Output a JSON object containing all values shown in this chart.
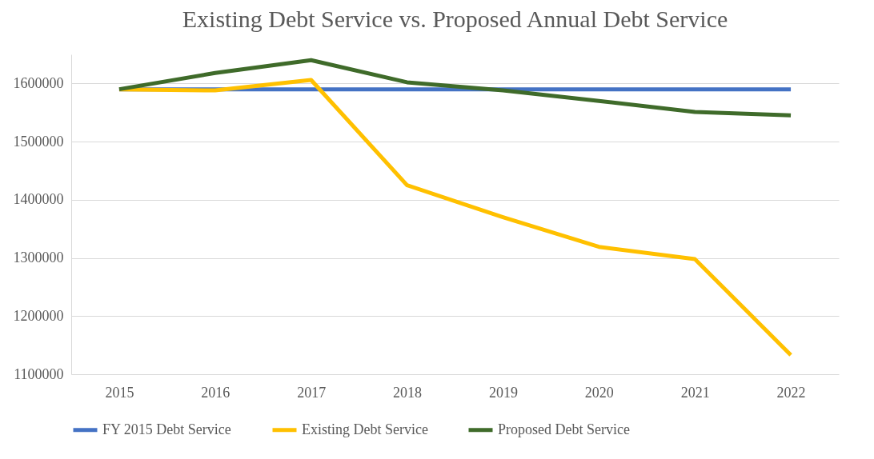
{
  "chart_data": {
    "type": "line",
    "title": "Existing Debt Service vs. Proposed Annual Debt Service",
    "categories": [
      "2015",
      "2016",
      "2017",
      "2018",
      "2019",
      "2020",
      "2021",
      "2022"
    ],
    "series": [
      {
        "name": "FY 2015 Debt Service",
        "color": "#4472c4",
        "values": [
          1590000,
          1590000,
          1590000,
          1590000,
          1590000,
          1590000,
          1590000,
          1590000
        ]
      },
      {
        "name": "Existing Debt Service",
        "color": "#ffc000",
        "values": [
          1590000,
          1588000,
          1606000,
          1425000,
          1370000,
          1319000,
          1298000,
          1133000
        ]
      },
      {
        "name": "Proposed Debt Service",
        "color": "#3f6b2a",
        "values": [
          1590000,
          1618000,
          1640000,
          1602000,
          1588000,
          1570000,
          1551000,
          1545000
        ]
      }
    ],
    "ylim": [
      1100000,
      1650000
    ],
    "yticks": [
      1100000,
      1200000,
      1300000,
      1400000,
      1500000,
      1600000
    ],
    "grid": "y",
    "legend": "bottom",
    "marker": "none",
    "line_style": "solid"
  }
}
